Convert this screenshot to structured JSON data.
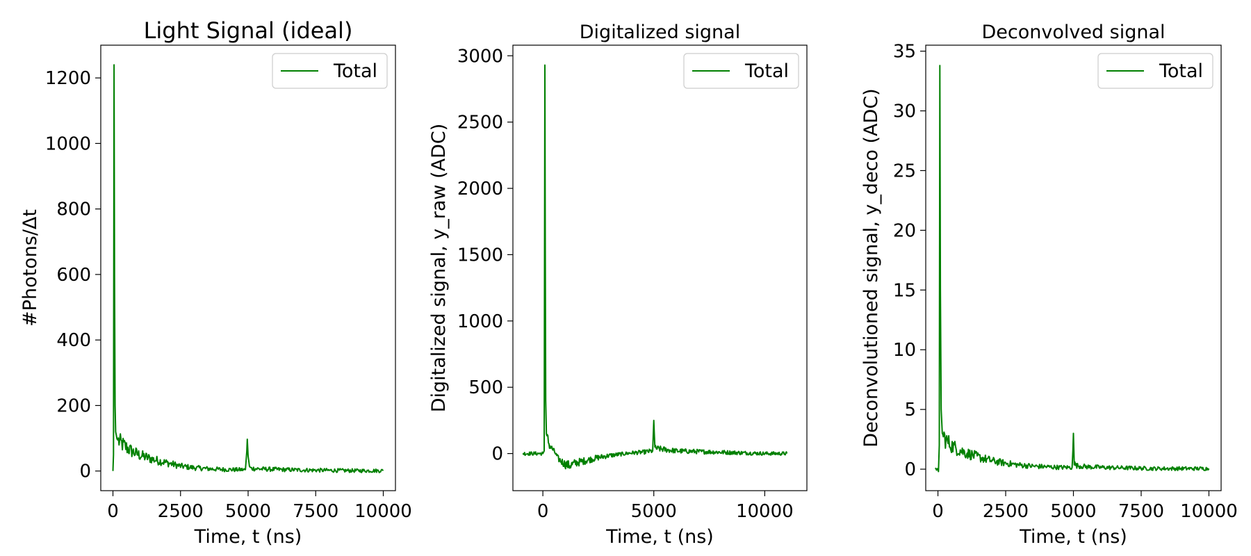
{
  "chart_data": [
    {
      "type": "line",
      "title": "Light Signal (ideal)",
      "xlabel": "Time, t (ns)",
      "ylabel": "#Photons/Δt",
      "xlim": [
        -450,
        10450
      ],
      "ylim": [
        -60,
        1300
      ],
      "xticks": [
        0,
        2500,
        5000,
        7500,
        10000
      ],
      "xtick_labels": [
        "0",
        "2500",
        "5000",
        "7500",
        "10000"
      ],
      "yticks": [
        0,
        200,
        400,
        600,
        800,
        1000,
        1200
      ],
      "ytick_labels": [
        "0",
        "200",
        "400",
        "600",
        "800",
        "1000",
        "1200"
      ],
      "legend": {
        "placement": "top-right",
        "entries": [
          "Total"
        ]
      },
      "grid": false,
      "series": [
        {
          "name": "Total",
          "color": "#008000",
          "x": [
            0,
            20,
            40,
            60,
            80,
            100,
            150,
            200,
            300,
            500,
            700,
            1000,
            1500,
            2000,
            2500,
            3000,
            3500,
            4000,
            4500,
            4900,
            4950,
            4970,
            5000,
            5050,
            5100,
            5500,
            6000,
            7000,
            8000,
            9000,
            10000
          ],
          "y": [
            0,
            50,
            1240,
            600,
            200,
            120,
            98,
            92,
            85,
            72,
            60,
            48,
            35,
            25,
            15,
            10,
            7,
            5,
            4,
            4,
            60,
            97,
            45,
            15,
            8,
            6,
            5,
            3,
            2,
            1,
            1
          ]
        }
      ]
    },
    {
      "type": "line",
      "title": "Digitalized signal",
      "xlabel": "Time, t (ns)",
      "ylabel": "Digitalized signal, y_raw (ADC)",
      "xlim": [
        -1350,
        11900
      ],
      "ylim": [
        -280,
        3080
      ],
      "xticks": [
        0,
        5000,
        10000
      ],
      "xtick_labels": [
        "0",
        "5000",
        "10000"
      ],
      "yticks": [
        0,
        500,
        1000,
        1500,
        2000,
        2500,
        3000
      ],
      "ytick_labels": [
        "0",
        "500",
        "1000",
        "1500",
        "2000",
        "2500",
        "3000"
      ],
      "legend": {
        "placement": "top-right",
        "entries": [
          "Total"
        ]
      },
      "grid": false,
      "series": [
        {
          "name": "Total",
          "color": "#008000",
          "x": [
            -900,
            -500,
            0,
            60,
            90,
            110,
            130,
            160,
            200,
            300,
            500,
            700,
            1000,
            1200,
            1500,
            2000,
            2500,
            3000,
            3500,
            4000,
            4500,
            4950,
            5000,
            5050,
            5500,
            6000,
            7000,
            8000,
            9000,
            10000,
            11000
          ],
          "y": [
            0,
            0,
            0,
            20,
            2930,
            1500,
            400,
            150,
            120,
            60,
            20,
            -40,
            -80,
            -90,
            -70,
            -50,
            -30,
            -15,
            -5,
            5,
            10,
            20,
            250,
            40,
            30,
            20,
            15,
            10,
            5,
            0,
            0
          ]
        }
      ]
    },
    {
      "type": "line",
      "title": "Deconvolved signal",
      "xlabel": "Time, t (ns)",
      "ylabel": "Deconvolutioned signal, y_deco (ADC)",
      "xlim": [
        -450,
        10450
      ],
      "ylim": [
        -1.8,
        35.5
      ],
      "xticks": [
        0,
        2500,
        5000,
        7500,
        10000
      ],
      "xtick_labels": [
        "0",
        "2500",
        "5000",
        "7500",
        "10000"
      ],
      "yticks": [
        0,
        5,
        10,
        15,
        20,
        25,
        30,
        35
      ],
      "ytick_labels": [
        "0",
        "5",
        "10",
        "15",
        "20",
        "25",
        "30",
        "35"
      ],
      "legend": {
        "placement": "top-right",
        "entries": [
          "Total"
        ]
      },
      "grid": false,
      "series": [
        {
          "name": "Total",
          "color": "#008000",
          "x": [
            -100,
            0,
            20,
            50,
            70,
            90,
            120,
            160,
            200,
            300,
            500,
            700,
            1000,
            1500,
            2000,
            2500,
            3000,
            3500,
            4000,
            4500,
            4950,
            4980,
            5000,
            5030,
            5100,
            5500,
            6000,
            7000,
            8000,
            9000,
            10000
          ],
          "y": [
            0,
            0,
            -0.2,
            2,
            33.8,
            15,
            5,
            3,
            2.8,
            2.4,
            2.0,
            1.7,
            1.4,
            1.0,
            0.7,
            0.5,
            0.35,
            0.25,
            0.2,
            0.15,
            0.15,
            1.5,
            3.0,
            0.5,
            0.3,
            0.2,
            0.15,
            0.1,
            0.05,
            0.05,
            0.05
          ]
        }
      ]
    }
  ]
}
